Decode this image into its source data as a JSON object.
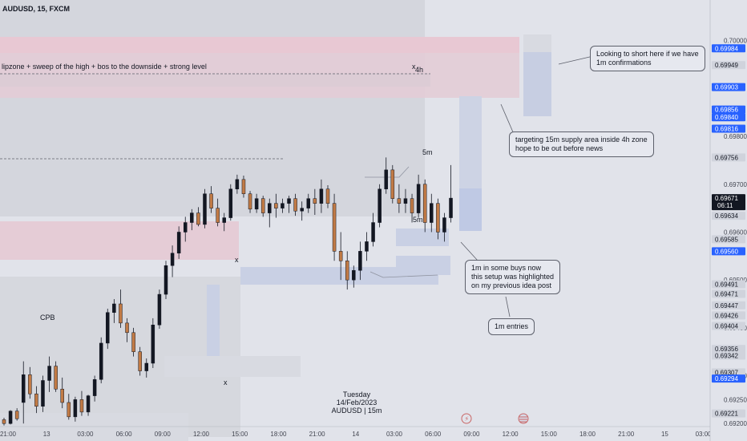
{
  "header": {
    "symbol_line": "AUDUSD, 15, FXCM"
  },
  "watermark": {
    "day": "Tuesday",
    "date": "14/Feb/2023",
    "ticker": "AUDUSD | 15m"
  },
  "notes": {
    "short": [
      "Looking to short here if we have",
      "1m confirmations"
    ],
    "target": [
      "targeting 15m supply area inside 4h zone",
      "hope to be out before news"
    ],
    "buys": [
      "1m in some buys now",
      "this setup was highlighted",
      "on my previous idea post"
    ],
    "entries": [
      "1m entries"
    ]
  },
  "chart_labels": {
    "liquidity_text": "lipzone + sweep of the high + bos to the downside + strong level",
    "tf_4h": "4h",
    "x_mark": "x",
    "tf_5m_top": "5m",
    "tf_5m_mid": "5m",
    "cpb": "CPB"
  },
  "colors": {
    "bg": "#e1e3ea",
    "bull": "#131722",
    "bear": "#c17a45",
    "supply": "#e8c8d3",
    "demand": "#b3c4e6",
    "gray_zone": "#d4d6dd",
    "blue_label": "#2962ff",
    "current_price_bg": "#131722"
  },
  "chart_data": {
    "type": "candlestick",
    "symbol": "AUDUSD",
    "timeframe": "15",
    "source": "FXCM",
    "x_ticks": [
      "21:00",
      "13",
      "03:00",
      "06:00",
      "09:00",
      "12:00",
      "15:00",
      "18:00",
      "21:00",
      "14",
      "03:00",
      "06:00",
      "09:00",
      "12:00",
      "15:00",
      "18:00",
      "21:00",
      "15",
      "03:00"
    ],
    "y_ticks": [
      0.7,
      0.698,
      0.697,
      0.696,
      0.695,
      0.694,
      0.693,
      0.6925,
      0.692
    ],
    "ylim": [
      0.69197,
      0.70085
    ],
    "price_labels": [
      {
        "value": "0.69984",
        "kind": "blue"
      },
      {
        "value": "0.69949",
        "kind": "gray"
      },
      {
        "value": "0.69903",
        "kind": "blue"
      },
      {
        "value": "0.69856",
        "kind": "blue"
      },
      {
        "value": "0.69840",
        "kind": "blue"
      },
      {
        "value": "0.69816",
        "kind": "blue"
      },
      {
        "value": "0.69756",
        "kind": "gray"
      },
      {
        "value": "0.69671",
        "kind": "current",
        "sub": "06:11"
      },
      {
        "value": "0.69634",
        "kind": "gray"
      },
      {
        "value": "0.69585",
        "kind": "gray"
      },
      {
        "value": "0.69560",
        "kind": "blue"
      },
      {
        "value": "0.69491",
        "kind": "gray"
      },
      {
        "value": "0.69471",
        "kind": "gray"
      },
      {
        "value": "0.69447",
        "kind": "gray"
      },
      {
        "value": "0.69426",
        "kind": "gray"
      },
      {
        "value": "0.69404",
        "kind": "gray"
      },
      {
        "value": "0.69356",
        "kind": "gray"
      },
      {
        "value": "0.69342",
        "kind": "gray"
      },
      {
        "value": "0.69307",
        "kind": "gray"
      },
      {
        "value": "0.69294",
        "kind": "blue"
      },
      {
        "value": "0.69221",
        "kind": "gray"
      }
    ],
    "series": [
      {
        "name": "AUDUSD",
        "ohlc": [
          [
            0.69208,
            0.69212,
            0.69196,
            0.692
          ],
          [
            0.692,
            0.69228,
            0.69198,
            0.69226
          ],
          [
            0.69226,
            0.69232,
            0.69206,
            0.6921
          ],
          [
            0.69244,
            0.6933,
            0.692,
            0.69302
          ],
          [
            0.69302,
            0.69318,
            0.69252,
            0.69262
          ],
          [
            0.69262,
            0.69278,
            0.69222,
            0.69236
          ],
          [
            0.69236,
            0.693,
            0.69224,
            0.6929
          ],
          [
            0.6929,
            0.6934,
            0.69266,
            0.6932
          ],
          [
            0.6932,
            0.6933,
            0.69266,
            0.69272
          ],
          [
            0.69272,
            0.69296,
            0.69232,
            0.69244
          ],
          [
            0.69244,
            0.69262,
            0.69208,
            0.69214
          ],
          [
            0.69214,
            0.69256,
            0.69204,
            0.6925
          ],
          [
            0.6925,
            0.69268,
            0.69216,
            0.69224
          ],
          [
            0.69224,
            0.6926,
            0.69216,
            0.69258
          ],
          [
            0.69258,
            0.693,
            0.69246,
            0.69292
          ],
          [
            0.69292,
            0.6938,
            0.69284,
            0.69368
          ],
          [
            0.69368,
            0.6944,
            0.69356,
            0.69432
          ],
          [
            0.69432,
            0.6946,
            0.6941,
            0.6945
          ],
          [
            0.6945,
            0.6948,
            0.694,
            0.6941
          ],
          [
            0.6941,
            0.6942,
            0.6937,
            0.6939
          ],
          [
            0.6939,
            0.694,
            0.6934,
            0.6935
          ],
          [
            0.6935,
            0.6936,
            0.693,
            0.6931
          ],
          [
            0.6931,
            0.69336,
            0.69296,
            0.69326
          ],
          [
            0.69326,
            0.6942,
            0.69316,
            0.69406
          ],
          [
            0.69406,
            0.6948,
            0.69398,
            0.6947
          ],
          [
            0.6947,
            0.6954,
            0.6946,
            0.6953
          ],
          [
            0.6953,
            0.69572,
            0.69506,
            0.69556
          ],
          [
            0.69556,
            0.69612,
            0.69544,
            0.696
          ],
          [
            0.696,
            0.69632,
            0.6958,
            0.6962
          ],
          [
            0.6962,
            0.69648,
            0.69604,
            0.6964
          ],
          [
            0.6964,
            0.69652,
            0.69612,
            0.69616
          ],
          [
            0.69616,
            0.6969,
            0.69608,
            0.6968
          ],
          [
            0.6968,
            0.69696,
            0.6964,
            0.6965
          ],
          [
            0.6965,
            0.6967,
            0.69612,
            0.6962
          ],
          [
            0.6962,
            0.6964,
            0.69602,
            0.6963
          ],
          [
            0.6963,
            0.697,
            0.69624,
            0.6969
          ],
          [
            0.6969,
            0.6972,
            0.6968,
            0.6971
          ],
          [
            0.6971,
            0.69718,
            0.69672,
            0.6968
          ],
          [
            0.6968,
            0.69686,
            0.6964,
            0.69648
          ],
          [
            0.69648,
            0.6968,
            0.6964,
            0.6967
          ],
          [
            0.6967,
            0.69676,
            0.69632,
            0.6964
          ],
          [
            0.6964,
            0.6967,
            0.6961,
            0.6966
          ],
          [
            0.6966,
            0.6968,
            0.6963,
            0.6965
          ],
          [
            0.6965,
            0.6967,
            0.6964,
            0.6966
          ],
          [
            0.6966,
            0.69676,
            0.6964,
            0.6967
          ],
          [
            0.6967,
            0.6968,
            0.69634,
            0.69644
          ],
          [
            0.69644,
            0.69664,
            0.69624,
            0.6965
          ],
          [
            0.6965,
            0.6968,
            0.6964,
            0.6967
          ],
          [
            0.6967,
            0.6969,
            0.69636,
            0.6966
          ],
          [
            0.6966,
            0.6971,
            0.6964,
            0.6969
          ],
          [
            0.6969,
            0.69698,
            0.6965,
            0.6966
          ],
          [
            0.6966,
            0.6968,
            0.6954,
            0.6956
          ],
          [
            0.6956,
            0.696,
            0.695,
            0.6954
          ],
          [
            0.6954,
            0.6956,
            0.6948,
            0.695
          ],
          [
            0.695,
            0.6953,
            0.69484,
            0.6952
          ],
          [
            0.6952,
            0.6958,
            0.695,
            0.6956
          ],
          [
            0.6956,
            0.696,
            0.6954,
            0.6958
          ],
          [
            0.6958,
            0.6964,
            0.6957,
            0.6962
          ],
          [
            0.6962,
            0.697,
            0.6961,
            0.6969
          ],
          [
            0.6969,
            0.69756,
            0.6968,
            0.6973
          ],
          [
            0.6973,
            0.6974,
            0.6966,
            0.6967
          ],
          [
            0.6967,
            0.697,
            0.6964,
            0.6966
          ],
          [
            0.6966,
            0.6969,
            0.6964,
            0.6967
          ],
          [
            0.6967,
            0.6968,
            0.6962,
            0.6964
          ],
          [
            0.6964,
            0.6972,
            0.6963,
            0.697
          ],
          [
            0.697,
            0.6971,
            0.696,
            0.6962
          ],
          [
            0.6962,
            0.6968,
            0.696,
            0.6966
          ],
          [
            0.6966,
            0.6967,
            0.69585,
            0.696
          ],
          [
            0.696,
            0.6964,
            0.6958,
            0.6963
          ],
          [
            0.6963,
            0.6974,
            0.6962,
            0.69671
          ]
        ]
      }
    ]
  }
}
